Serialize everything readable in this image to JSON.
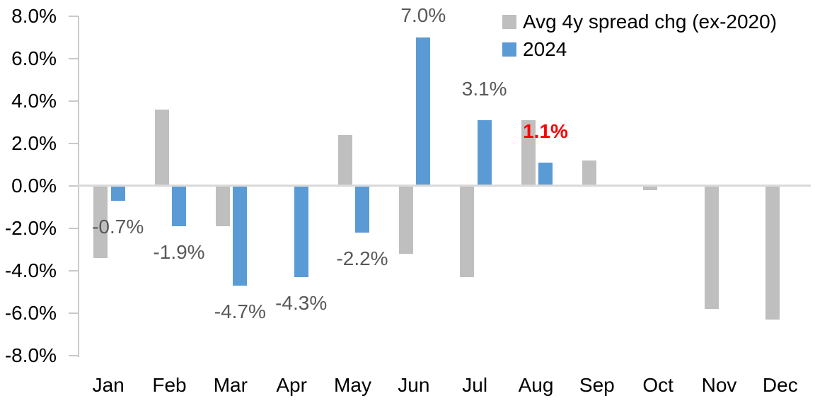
{
  "chart_data": {
    "type": "bar",
    "title": "",
    "categories": [
      "Jan",
      "Feb",
      "Mar",
      "Apr",
      "May",
      "Jun",
      "Jul",
      "Aug",
      "Sep",
      "Oct",
      "Nov",
      "Dec"
    ],
    "series": [
      {
        "name": "Avg 4y spread chg (ex-2020)",
        "color": "#bfbfbf",
        "values": [
          -3.4,
          3.6,
          -1.9,
          0,
          2.4,
          -3.2,
          -4.3,
          3.1,
          1.2,
          -0.2,
          -5.8,
          -6.3
        ]
      },
      {
        "name": "2024",
        "color": "#5b9bd5",
        "values": [
          -0.7,
          -1.9,
          -4.7,
          -4.3,
          -2.2,
          7.0,
          3.1,
          1.1,
          null,
          null,
          null,
          null
        ],
        "point_labels": [
          "-0.7%",
          "-1.9%",
          "-4.7%",
          "-4.3%",
          "-2.2%",
          "7.0%",
          "3.1%",
          "1.1%",
          null,
          null,
          null,
          null
        ]
      }
    ],
    "highlighted_label": {
      "month": "Aug",
      "text": "1.1%",
      "color": "#ff0000",
      "bold": true
    },
    "label_colors": {
      "default": "#595959",
      "highlight": "#ff0000"
    },
    "y_axis": {
      "min": -8,
      "max": 8,
      "step": 2,
      "unit": "%",
      "tick_labels": [
        "8.0%",
        "6.0%",
        "4.0%",
        "2.0%",
        "0.0%",
        "-2.0%",
        "-4.0%",
        "-6.0%",
        "-8.0%"
      ]
    },
    "x_axis": {
      "tick_labels": [
        "Jan",
        "Feb",
        "Mar",
        "Apr",
        "May",
        "Jun",
        "Jul",
        "Aug",
        "Sep",
        "Oct",
        "Nov",
        "Dec"
      ]
    },
    "legend": {
      "position": "top-right",
      "entries": [
        {
          "label": "Avg 4y spread chg (ex-2020)",
          "color": "#bfbfbf"
        },
        {
          "label": "2024",
          "color": "#5b9bd5"
        }
      ]
    },
    "axis_colors": {
      "axis_line": "#c9c9c9",
      "zero_line": "#d9d9d9",
      "text": "#000000"
    },
    "grid": false
  }
}
